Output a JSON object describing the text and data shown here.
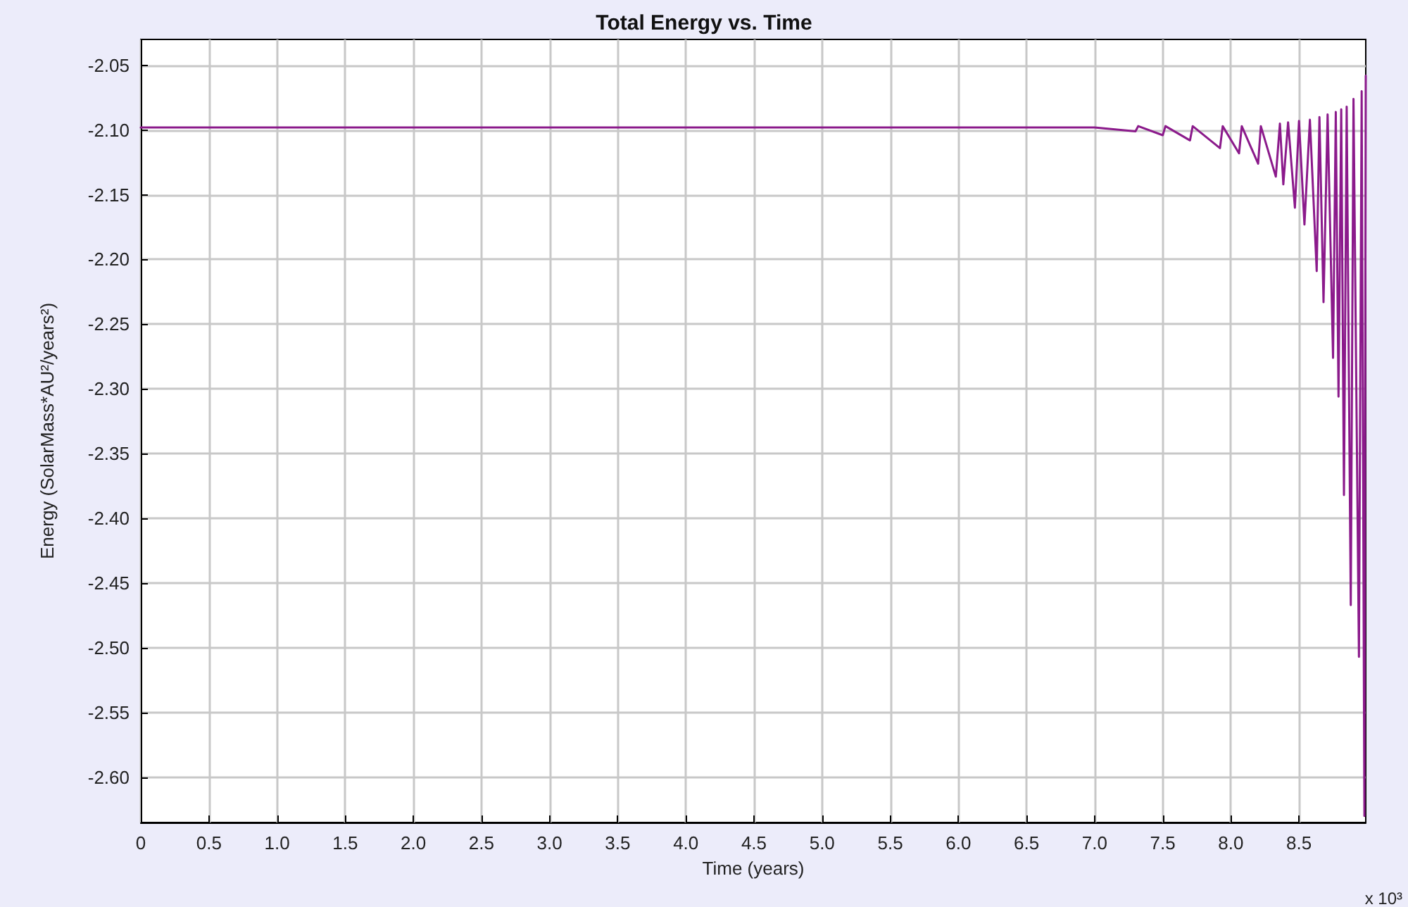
{
  "chart_data": {
    "type": "line",
    "title": "Total Energy vs. Time",
    "xlabel": "Time (years)",
    "ylabel": "Energy (SolarMass*AU²/years²)",
    "annotations": [
      "x 10³"
    ],
    "x": [
      0,
      7.0,
      7.3,
      7.32,
      7.5,
      7.52,
      7.7,
      7.72,
      7.92,
      7.94,
      8.06,
      8.08,
      8.2,
      8.22,
      8.33,
      8.36,
      8.385,
      8.42,
      8.47,
      8.5,
      8.54,
      8.58,
      8.63,
      8.65,
      8.68,
      8.71,
      8.75,
      8.77,
      8.79,
      8.81,
      8.83,
      8.85,
      8.88,
      8.9,
      8.94,
      8.96,
      8.98,
      8.99
    ],
    "series": [
      {
        "color": "#8b1a8b",
        "values": [
          -2.098,
          -2.098,
          -2.101,
          -2.097,
          -2.104,
          -2.097,
          -2.108,
          -2.097,
          -2.114,
          -2.097,
          -2.118,
          -2.097,
          -2.126,
          -2.097,
          -2.136,
          -2.095,
          -2.142,
          -2.094,
          -2.16,
          -2.093,
          -2.173,
          -2.092,
          -2.209,
          -2.09,
          -2.233,
          -2.088,
          -2.276,
          -2.086,
          -2.306,
          -2.084,
          -2.382,
          -2.082,
          -2.467,
          -2.076,
          -2.507,
          -2.07,
          -2.63,
          -2.058
        ]
      }
    ],
    "xlim": [
      0,
      8.99
    ],
    "xticks": [
      0,
      0.5,
      {
        "value": 1,
        "label": "1.0"
      },
      1.5,
      {
        "value": 2,
        "label": "2.0"
      },
      2.5,
      {
        "value": 3,
        "label": "3.0"
      },
      3.5,
      {
        "value": 4,
        "label": "4.0"
      },
      4.5,
      {
        "value": 5,
        "label": "5.0"
      },
      5.5,
      {
        "value": 6,
        "label": "6.0"
      },
      6.5,
      {
        "value": 7,
        "label": "7.0"
      },
      7.5,
      {
        "value": 8,
        "label": "8.0"
      },
      8.5
    ],
    "ylim": [
      -2.635,
      -2.03
    ],
    "yticks": [
      {
        "value": -2.6,
        "label": "-2.60"
      },
      -2.55,
      {
        "value": -2.5,
        "label": "-2.50"
      },
      -2.45,
      {
        "value": -2.4,
        "label": "-2.40"
      },
      -2.35,
      {
        "value": -2.3,
        "label": "-2.30"
      },
      -2.25,
      {
        "value": -2.2,
        "label": "-2.20"
      },
      -2.15,
      {
        "value": -2.1,
        "label": "-2.10"
      },
      -2.05
    ],
    "grid": true,
    "line_style": "solid"
  }
}
